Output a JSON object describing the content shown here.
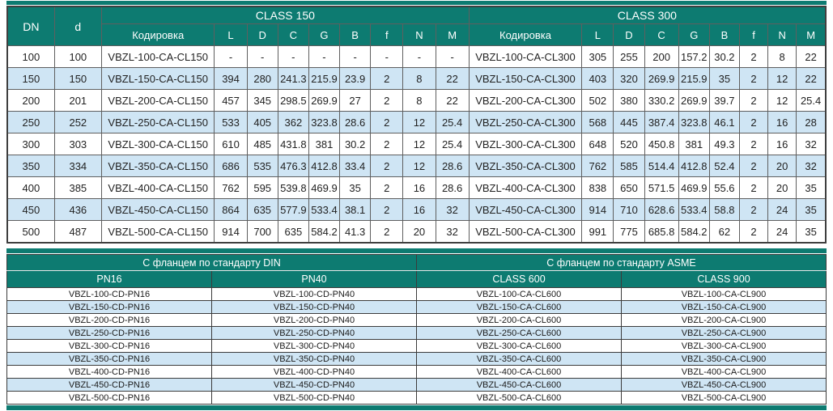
{
  "colors": {
    "header_teal": "#0d7b71",
    "stripe_blue": "#cfe5f4",
    "grid_gray": "#5f5f5f",
    "text_dark": "#222222"
  },
  "table1": {
    "dn_label": "DN",
    "d_label": "d",
    "groups": [
      {
        "title": "CLASS 150",
        "code_header": "Кодировка",
        "cols": [
          "L",
          "D",
          "C",
          "G",
          "B",
          "f",
          "N",
          "M"
        ]
      },
      {
        "title": "CLASS 300",
        "code_header": "Кодировка",
        "cols": [
          "L",
          "D",
          "C",
          "G",
          "B",
          "f",
          "N",
          "M"
        ]
      }
    ],
    "rows": [
      [
        "100",
        "100",
        "VBZL-100-CA-CL150",
        "-",
        "-",
        "-",
        "-",
        "-",
        "-",
        "-",
        "-",
        "VBZL-100-CA-CL300",
        "305",
        "255",
        "200",
        "157.2",
        "30.2",
        "2",
        "8",
        "22"
      ],
      [
        "150",
        "150",
        "VBZL-150-CA-CL150",
        "394",
        "280",
        "241.3",
        "215.9",
        "23.9",
        "2",
        "8",
        "22",
        "VBZL-150-CA-CL300",
        "403",
        "320",
        "269.9",
        "215.9",
        "35",
        "2",
        "12",
        "22"
      ],
      [
        "200",
        "201",
        "VBZL-200-CA-CL150",
        "457",
        "345",
        "298.5",
        "269.9",
        "27",
        "2",
        "8",
        "22",
        "VBZL-200-CA-CL300",
        "502",
        "380",
        "330.2",
        "269.9",
        "39.7",
        "2",
        "12",
        "25.4"
      ],
      [
        "250",
        "252",
        "VBZL-250-CA-CL150",
        "533",
        "405",
        "362",
        "323.8",
        "28.6",
        "2",
        "12",
        "25.4",
        "VBZL-250-CA-CL300",
        "568",
        "445",
        "387.4",
        "323.8",
        "46.1",
        "2",
        "16",
        "28"
      ],
      [
        "300",
        "303",
        "VBZL-300-CA-CL150",
        "610",
        "485",
        "431.8",
        "381",
        "30.2",
        "2",
        "12",
        "25.4",
        "VBZL-300-CA-CL300",
        "648",
        "520",
        "450.8",
        "381",
        "49.3",
        "2",
        "16",
        "32"
      ],
      [
        "350",
        "334",
        "VBZL-350-CA-CL150",
        "686",
        "535",
        "476.3",
        "412.8",
        "33.4",
        "2",
        "12",
        "28.6",
        "VBZL-350-CA-CL300",
        "762",
        "585",
        "514.4",
        "412.8",
        "52.4",
        "2",
        "20",
        "32"
      ],
      [
        "400",
        "385",
        "VBZL-400-CA-CL150",
        "762",
        "595",
        "539.8",
        "469.9",
        "35",
        "2",
        "16",
        "28.6",
        "VBZL-400-CA-CL300",
        "838",
        "650",
        "571.5",
        "469.9",
        "55.6",
        "2",
        "20",
        "35"
      ],
      [
        "450",
        "436",
        "VBZL-450-CA-CL150",
        "864",
        "635",
        "577.9",
        "533.4",
        "38.1",
        "2",
        "16",
        "32",
        "VBZL-450-CA-CL300",
        "914",
        "710",
        "628.6",
        "533.4",
        "58.8",
        "2",
        "24",
        "35"
      ],
      [
        "500",
        "487",
        "VBZL-500-CA-CL150",
        "914",
        "700",
        "635",
        "584.2",
        "41.3",
        "2",
        "20",
        "32",
        "VBZL-500-CA-CL300",
        "991",
        "775",
        "685.8",
        "584.2",
        "62",
        "2",
        "24",
        "35"
      ]
    ]
  },
  "table2": {
    "groups": [
      {
        "title": "С фланцем по стандарту DIN",
        "cols": [
          "PN16",
          "PN40"
        ]
      },
      {
        "title": "С фланцем по стандарту ASME",
        "cols": [
          "CLASS 600",
          "CLASS 900"
        ]
      }
    ],
    "rows": [
      [
        "VBZL-100-CD-PN16",
        "VBZL-100-CD-PN40",
        "VBZL-100-CA-CL600",
        "VBZL-100-CA-CL900"
      ],
      [
        "VBZL-150-CD-PN16",
        "VBZL-150-CD-PN40",
        "VBZL-150-CA-CL600",
        "VBZL-150-CA-CL900"
      ],
      [
        "VBZL-200-CD-PN16",
        "VBZL-200-CD-PN40",
        "VBZL-200-CA-CL600",
        "VBZL-200-CA-CL900"
      ],
      [
        "VBZL-250-CD-PN16",
        "VBZL-250-CD-PN40",
        "VBZL-250-CA-CL600",
        "VBZL-250-CA-CL900"
      ],
      [
        "VBZL-300-CD-PN16",
        "VBZL-300-CD-PN40",
        "VBZL-300-CA-CL600",
        "VBZL-300-CA-CL900"
      ],
      [
        "VBZL-350-CD-PN16",
        "VBZL-350-CD-PN40",
        "VBZL-350-CA-CL600",
        "VBZL-350-CA-CL900"
      ],
      [
        "VBZL-400-CD-PN16",
        "VBZL-400-CD-PN40",
        "VBZL-400-CA-CL600",
        "VBZL-400-CA-CL900"
      ],
      [
        "VBZL-450-CD-PN16",
        "VBZL-450-CD-PN40",
        "VBZL-450-CA-CL600",
        "VBZL-450-CA-CL900"
      ],
      [
        "VBZL-500-CD-PN16",
        "VBZL-500-CD-PN40",
        "VBZL-500-CA-CL600",
        "VBZL-500-CA-CL900"
      ]
    ]
  }
}
